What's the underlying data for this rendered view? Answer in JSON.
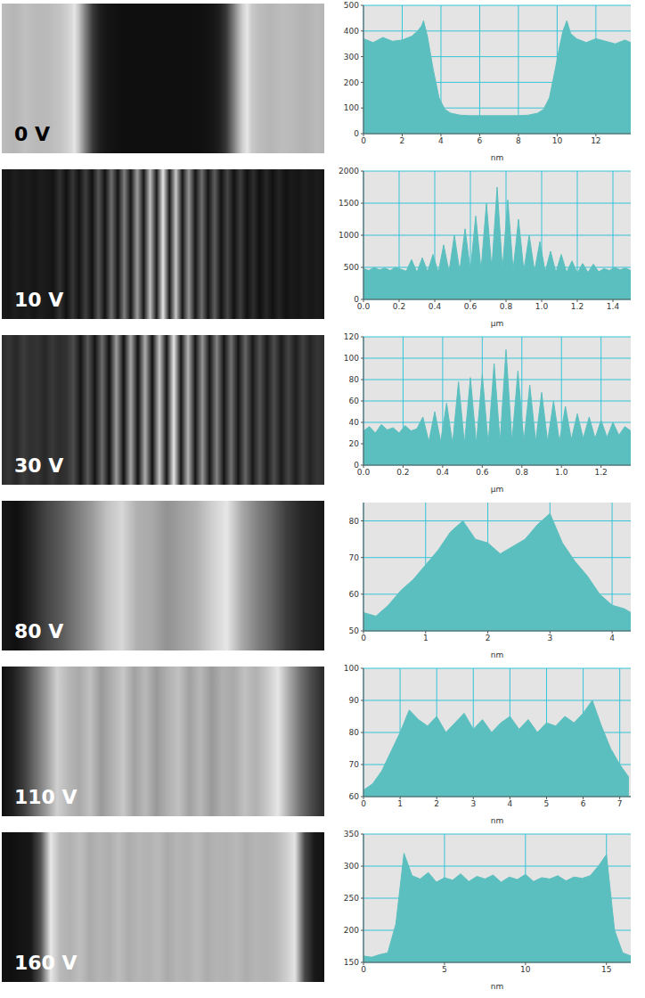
{
  "chart_data": [
    {
      "type": "area",
      "title": "0 V",
      "x_label": "nm",
      "color": "#5cbfbf",
      "grid": true,
      "xlim": [
        0,
        13.8
      ],
      "xticks": [
        0,
        2,
        4,
        6,
        8,
        10,
        12
      ],
      "ylim": [
        0,
        500
      ],
      "yticks": [
        0,
        100,
        200,
        300,
        400,
        500
      ],
      "x": [
        0,
        0.5,
        1,
        1.5,
        2,
        2.5,
        2.8,
        3.0,
        3.1,
        3.3,
        3.6,
        3.9,
        4.2,
        4.5,
        5,
        5.5,
        6,
        6.5,
        7,
        7.5,
        8,
        8.5,
        9,
        9.3,
        9.6,
        9.9,
        10.1,
        10.3,
        10.5,
        10.7,
        11,
        11.5,
        12,
        12.5,
        13,
        13.5,
        13.8
      ],
      "values": [
        370,
        355,
        375,
        360,
        365,
        380,
        400,
        420,
        440,
        380,
        250,
        140,
        95,
        80,
        72,
        70,
        70,
        70,
        70,
        70,
        70,
        72,
        80,
        95,
        140,
        250,
        330,
        400,
        440,
        390,
        370,
        355,
        370,
        360,
        350,
        365,
        355
      ]
    },
    {
      "type": "area",
      "title": "10 V",
      "x_label": "µm",
      "color": "#5cbfbf",
      "grid": true,
      "xlim": [
        0,
        1.5
      ],
      "xticks": [
        {
          "value": 0,
          "label": "0.0"
        },
        0.2,
        0.4,
        0.6,
        0.8,
        {
          "value": 1,
          "label": "1.0"
        },
        1.2,
        1.4
      ],
      "ylim": [
        0,
        2000
      ],
      "yticks": [
        0,
        500,
        1000,
        1500,
        2000
      ],
      "x": [
        0,
        0.03,
        0.06,
        0.09,
        0.12,
        0.15,
        0.18,
        0.21,
        0.24,
        0.27,
        0.3,
        0.33,
        0.36,
        0.39,
        0.42,
        0.45,
        0.48,
        0.51,
        0.54,
        0.57,
        0.6,
        0.63,
        0.66,
        0.69,
        0.72,
        0.75,
        0.78,
        0.81,
        0.84,
        0.87,
        0.9,
        0.93,
        0.96,
        0.99,
        1.02,
        1.05,
        1.08,
        1.11,
        1.14,
        1.17,
        1.2,
        1.23,
        1.26,
        1.29,
        1.32,
        1.35,
        1.38,
        1.41,
        1.44,
        1.47,
        1.5
      ],
      "values": [
        480,
        450,
        500,
        460,
        490,
        450,
        500,
        470,
        440,
        620,
        420,
        650,
        430,
        700,
        420,
        850,
        430,
        1000,
        440,
        1100,
        450,
        1300,
        460,
        1500,
        480,
        1750,
        470,
        1550,
        460,
        1250,
        450,
        1000,
        440,
        900,
        430,
        750,
        420,
        700,
        420,
        600,
        410,
        560,
        420,
        550,
        430,
        480,
        450,
        500,
        460,
        490,
        450
      ]
    },
    {
      "type": "area",
      "title": "30 V",
      "x_label": "µm",
      "color": "#5cbfbf",
      "grid": true,
      "xlim": [
        0,
        1.35
      ],
      "xticks": [
        {
          "value": 0,
          "label": "0.0"
        },
        0.2,
        0.4,
        0.6,
        0.8,
        {
          "value": 1,
          "label": "1.0"
        },
        1.2
      ],
      "ylim": [
        0,
        120
      ],
      "yticks": [
        0,
        20,
        40,
        60,
        80,
        100,
        120
      ],
      "x": [
        0,
        0.03,
        0.06,
        0.09,
        0.12,
        0.15,
        0.18,
        0.21,
        0.24,
        0.27,
        0.3,
        0.33,
        0.36,
        0.39,
        0.42,
        0.45,
        0.48,
        0.51,
        0.54,
        0.57,
        0.6,
        0.63,
        0.66,
        0.69,
        0.72,
        0.75,
        0.78,
        0.81,
        0.84,
        0.87,
        0.9,
        0.93,
        0.96,
        0.99,
        1.02,
        1.05,
        1.08,
        1.11,
        1.14,
        1.17,
        1.2,
        1.23,
        1.26,
        1.29,
        1.32,
        1.35
      ],
      "values": [
        32,
        36,
        30,
        38,
        33,
        35,
        30,
        37,
        32,
        34,
        45,
        22,
        50,
        22,
        58,
        20,
        78,
        20,
        82,
        20,
        85,
        20,
        95,
        22,
        108,
        22,
        88,
        22,
        75,
        22,
        68,
        22,
        60,
        22,
        55,
        24,
        48,
        25,
        45,
        25,
        42,
        26,
        40,
        28,
        36,
        32
      ]
    },
    {
      "type": "area",
      "title": "80 V",
      "x_label": "nm",
      "color": "#5cbfbf",
      "grid": true,
      "xlim": [
        0,
        4.3
      ],
      "xticks": [
        0,
        1,
        2,
        3,
        4
      ],
      "ylim": [
        50,
        85
      ],
      "yticks": [
        50,
        60,
        70,
        80
      ],
      "x": [
        0,
        0.2,
        0.4,
        0.6,
        0.8,
        1.0,
        1.2,
        1.4,
        1.6,
        1.8,
        2.0,
        2.2,
        2.4,
        2.6,
        2.8,
        3.0,
        3.2,
        3.4,
        3.6,
        3.8,
        4.0,
        4.2,
        4.3
      ],
      "values": [
        55,
        54,
        57,
        61,
        64,
        68,
        72,
        77,
        80,
        75,
        74,
        71,
        73,
        75,
        79,
        82,
        74,
        69,
        65,
        60,
        57,
        56,
        55
      ]
    },
    {
      "type": "area",
      "title": "110 V",
      "x_label": "nm",
      "color": "#5cbfbf",
      "grid": true,
      "xlim": [
        0,
        7.3
      ],
      "xticks": [
        0,
        1,
        2,
        3,
        4,
        5,
        6,
        7
      ],
      "ylim": [
        60,
        100
      ],
      "yticks": [
        60,
        70,
        80,
        90,
        100
      ],
      "x": [
        0,
        0.25,
        0.5,
        0.75,
        1.0,
        1.25,
        1.5,
        1.75,
        2.0,
        2.25,
        2.5,
        2.75,
        3.0,
        3.25,
        3.5,
        3.75,
        4.0,
        4.25,
        4.5,
        4.75,
        5.0,
        5.25,
        5.5,
        5.75,
        6.0,
        6.25,
        6.5,
        6.75,
        7.0,
        7.25
      ],
      "values": [
        62,
        64,
        68,
        74,
        80,
        87,
        84,
        82,
        85,
        80,
        83,
        86,
        81,
        84,
        80,
        83,
        85,
        81,
        84,
        80,
        83,
        82,
        85,
        83,
        86,
        90,
        82,
        75,
        70,
        66
      ]
    },
    {
      "type": "area",
      "title": "160 V",
      "x_label": "nm",
      "color": "#5cbfbf",
      "grid": true,
      "xlim": [
        0,
        16.5
      ],
      "xticks": [
        0,
        5,
        10,
        15
      ],
      "ylim": [
        150,
        350
      ],
      "yticks": [
        150,
        200,
        250,
        300,
        350
      ],
      "x": [
        0,
        0.5,
        1,
        1.5,
        2,
        2.5,
        3,
        3.5,
        4,
        4.5,
        5,
        5.5,
        6,
        6.5,
        7,
        7.5,
        8,
        8.5,
        9,
        9.5,
        10,
        10.5,
        11,
        11.5,
        12,
        12.5,
        13,
        13.5,
        14,
        14.5,
        15,
        15.5,
        16,
        16.5
      ],
      "values": [
        160,
        158,
        162,
        165,
        210,
        320,
        285,
        280,
        290,
        275,
        282,
        278,
        288,
        276,
        284,
        280,
        286,
        275,
        283,
        279,
        287,
        276,
        282,
        280,
        285,
        277,
        283,
        281,
        285,
        300,
        318,
        200,
        165,
        160
      ]
    }
  ]
}
